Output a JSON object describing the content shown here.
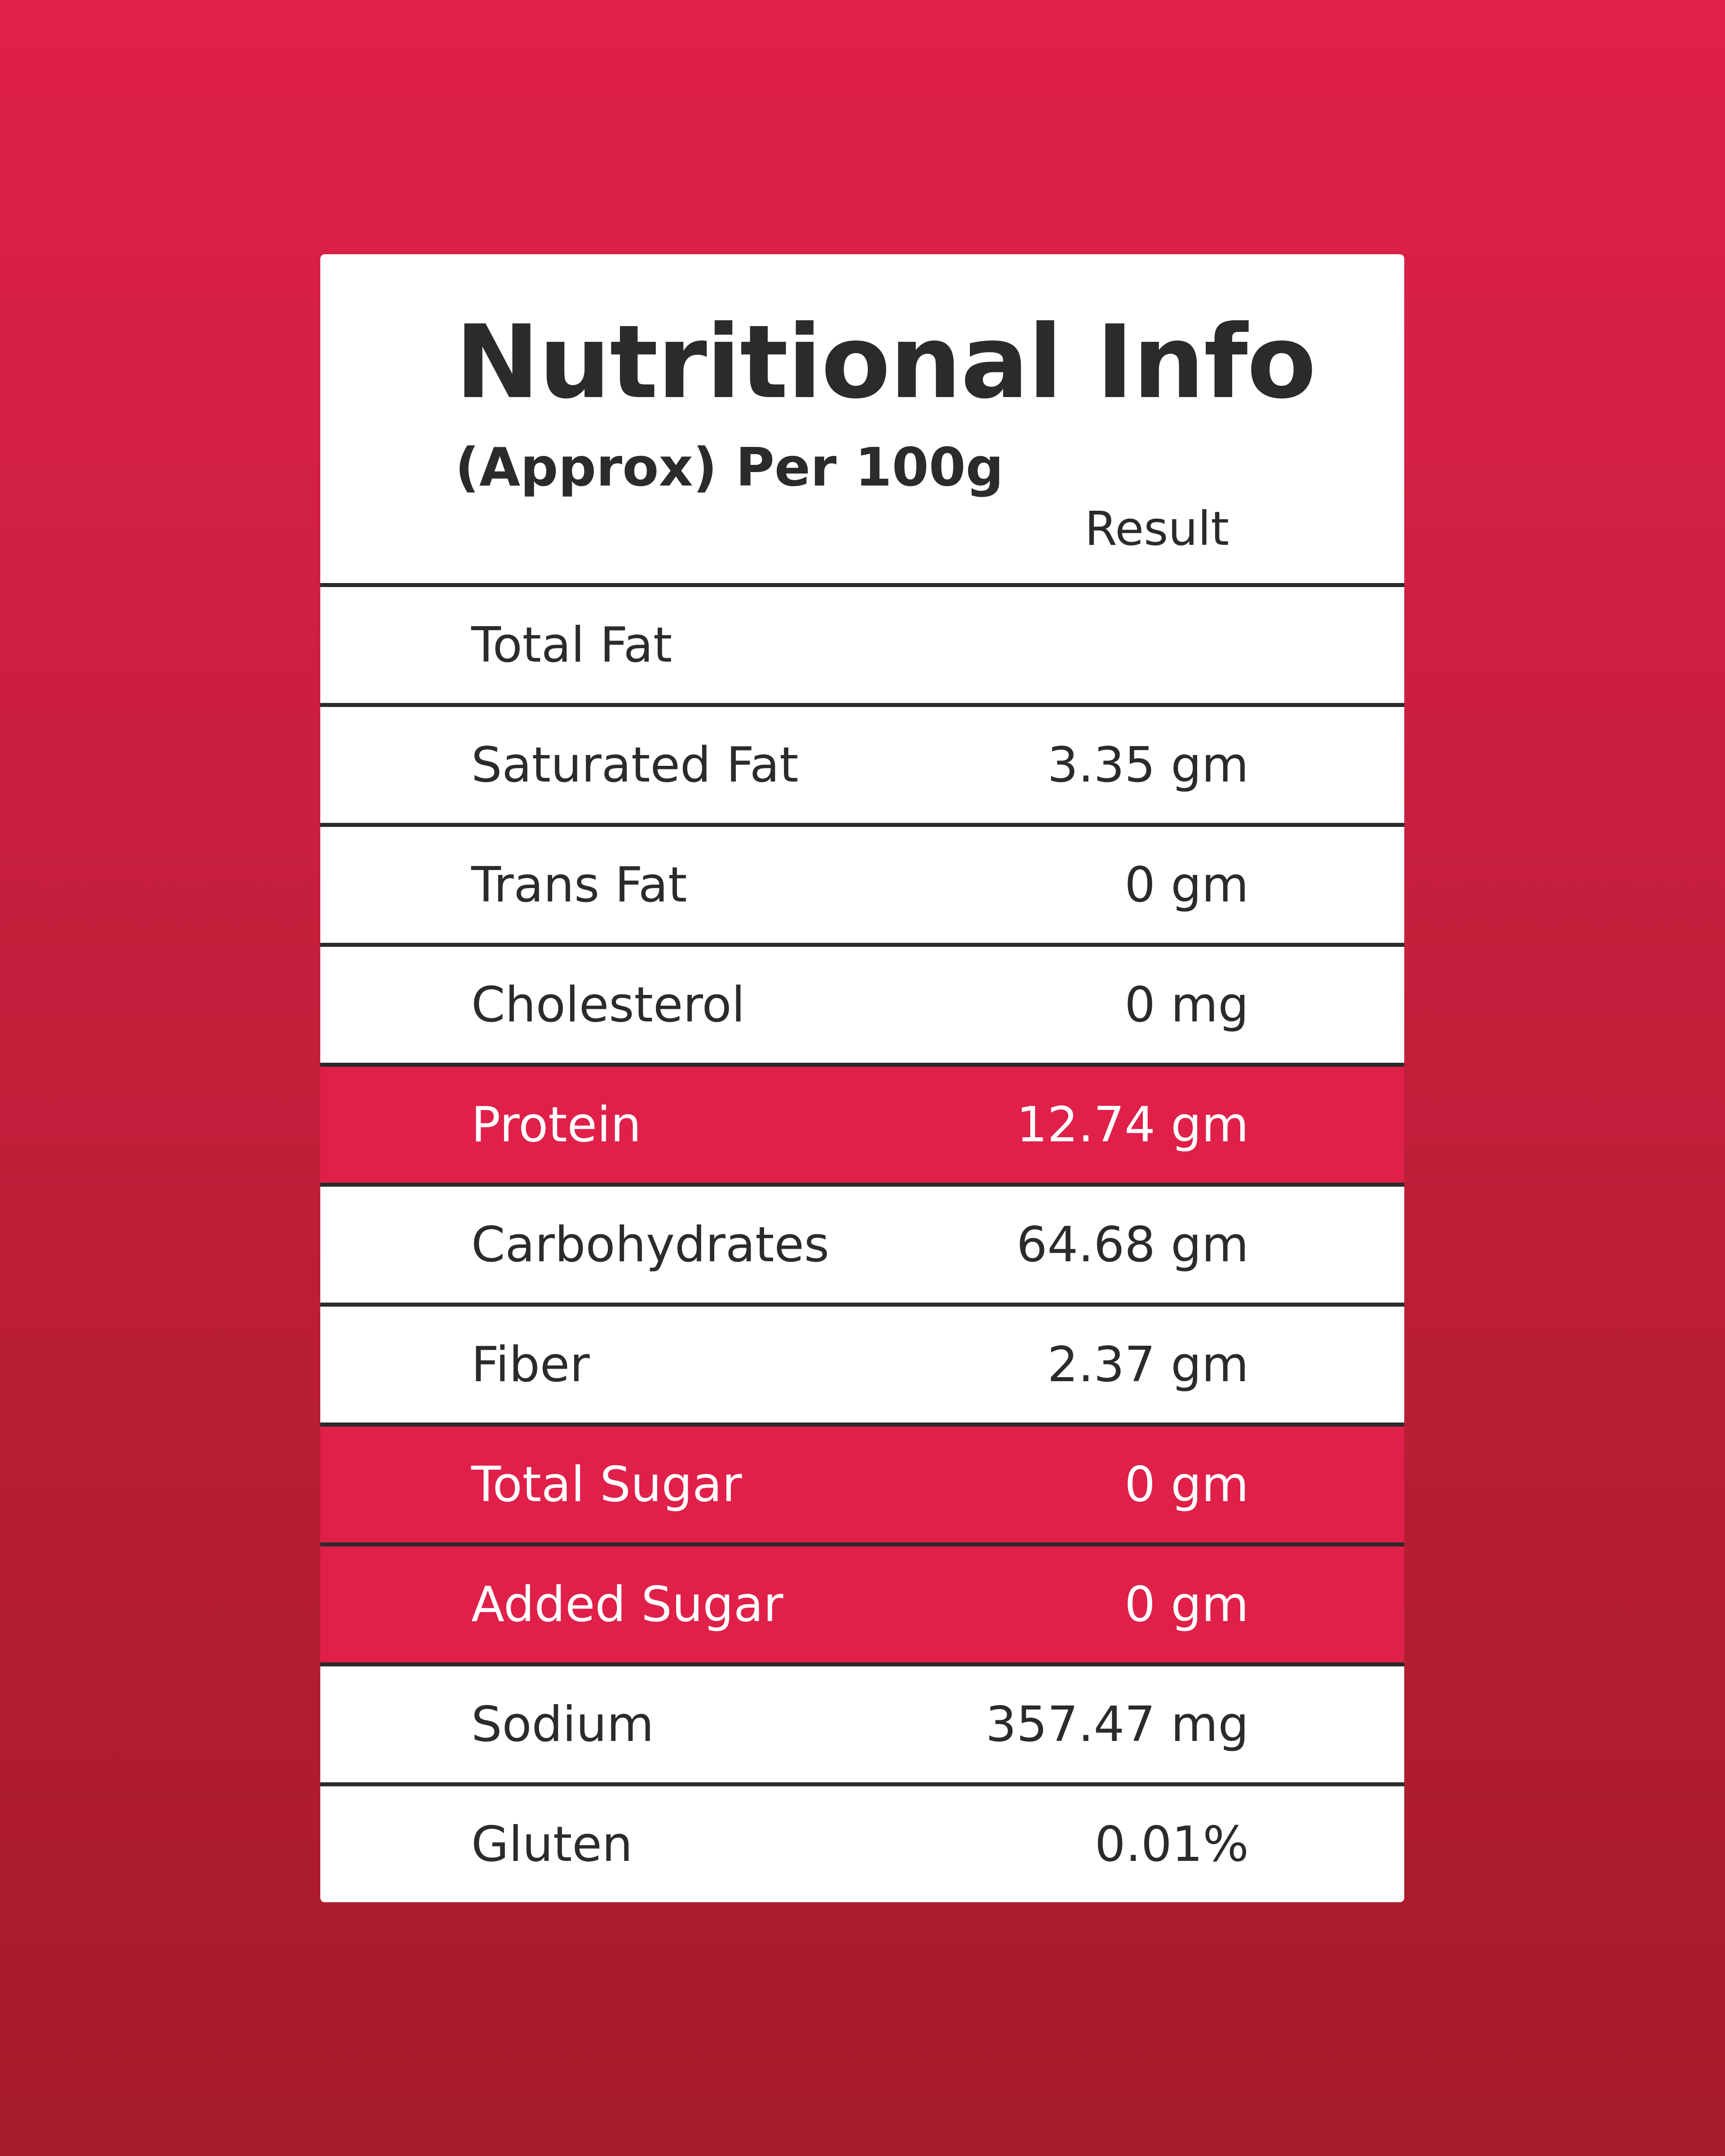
{
  "header": {
    "title": "Nutritional Info",
    "subtitle": "(Approx) Per 100g",
    "column": "Result"
  },
  "table": {
    "rows": [
      [
        "Total Fat",
        null
      ],
      [
        "Saturated Fat",
        "3.35 gm"
      ],
      [
        "Trans Fat",
        "0 gm"
      ],
      [
        "Cholesterol",
        "0 mg"
      ],
      [
        "Protein",
        "12.74 gm"
      ],
      [
        "Carbohydrates",
        "64.68 gm"
      ],
      [
        "Fiber",
        "2.37 gm"
      ],
      [
        "Total Sugar",
        "0 gm"
      ],
      [
        "Added Sugar",
        "0 gm"
      ],
      [
        "Sodium",
        "357.47 mg"
      ],
      [
        "Gluten",
        "0.01%"
      ]
    ]
  }
}
